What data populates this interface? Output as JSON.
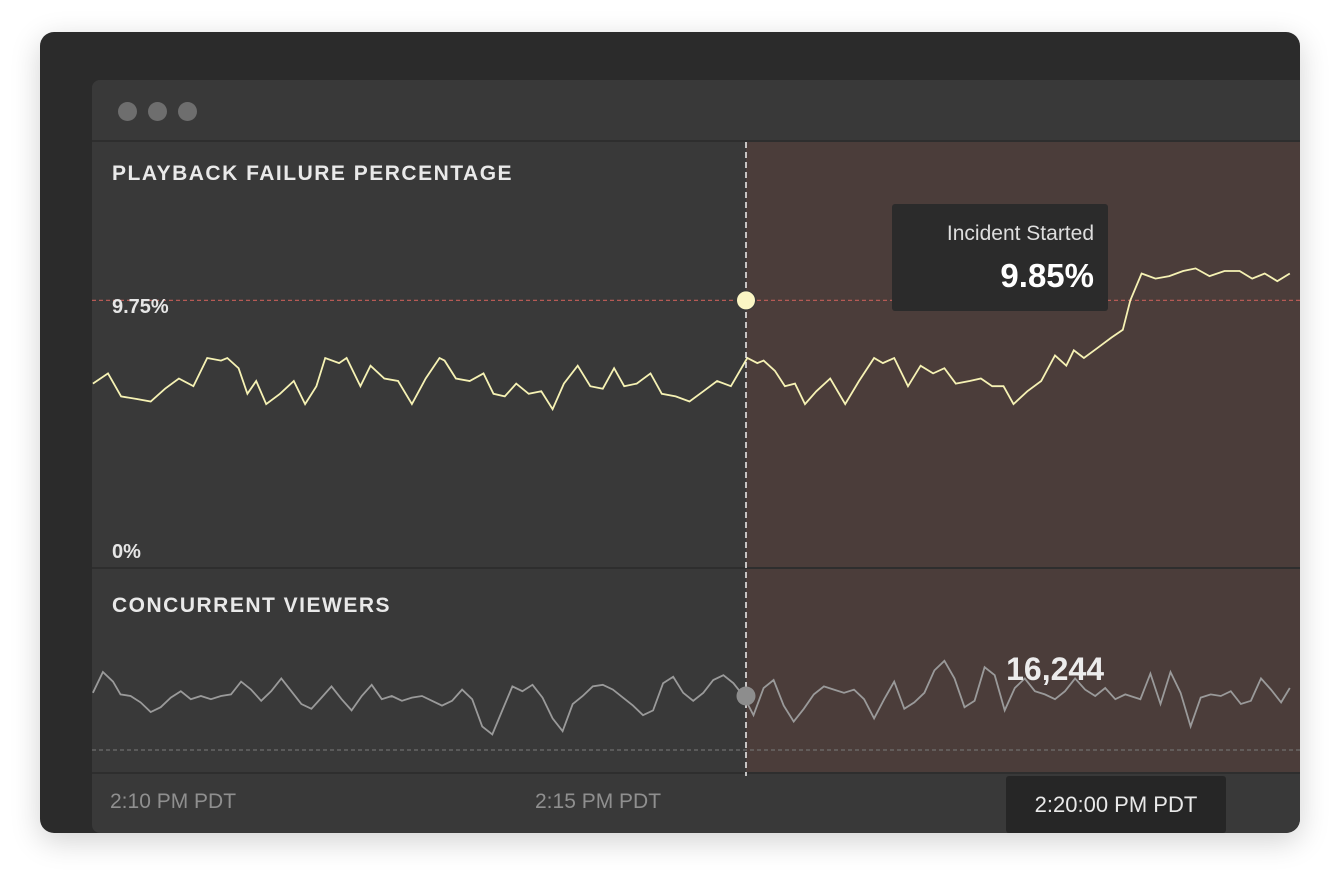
{
  "window": {
    "dots": [
      "close-dot",
      "minimize-dot",
      "maximize-dot"
    ]
  },
  "failure_panel": {
    "title": "PLAYBACK FAILURE PERCENTAGE",
    "threshold_label": "9.75%",
    "zero_label": "0%",
    "line_color": "#f6f2b4",
    "threshold_color": "#b65a55"
  },
  "viewers_panel": {
    "title": "CONCURRENT VIEWERS",
    "current_value": "16,244",
    "line_color": "#9a9a9a"
  },
  "tooltip": {
    "label": "Incident Started",
    "value": "9.85%"
  },
  "x_axis": {
    "labels": [
      "2:10 PM PDT",
      "2:15 PM PDT"
    ],
    "current_time": "2:20:00 PM PDT"
  },
  "incident_color": "#4b3d3a",
  "chart_data": [
    {
      "type": "line",
      "title": "PLAYBACK FAILURE PERCENTAGE",
      "x_unit": "minutes after 2:10 PM PDT",
      "threshold": 9.75,
      "incident_start_x": 10.0,
      "ylim": [
        0,
        12
      ],
      "series": [
        {
          "values": [
            [
              -0.4,
              6.5
            ],
            [
              -0.16,
              6.9
            ],
            [
              0.05,
              6.0
            ],
            [
              0.3,
              5.9
            ],
            [
              0.52,
              5.8
            ],
            [
              0.75,
              6.3
            ],
            [
              0.97,
              6.7
            ],
            [
              1.2,
              6.4
            ],
            [
              1.42,
              7.5
            ],
            [
              1.64,
              7.4
            ],
            [
              1.74,
              7.5
            ],
            [
              1.92,
              7.1
            ],
            [
              2.06,
              6.1
            ],
            [
              2.2,
              6.6
            ],
            [
              2.36,
              5.7
            ],
            [
              2.58,
              6.1
            ],
            [
              2.8,
              6.6
            ],
            [
              2.98,
              5.7
            ],
            [
              3.16,
              6.4
            ],
            [
              3.3,
              7.5
            ],
            [
              3.52,
              7.3
            ],
            [
              3.64,
              7.5
            ],
            [
              3.86,
              6.4
            ],
            [
              4.02,
              7.2
            ],
            [
              4.24,
              6.7
            ],
            [
              4.46,
              6.6
            ],
            [
              4.68,
              5.7
            ],
            [
              4.9,
              6.7
            ],
            [
              5.12,
              7.5
            ],
            [
              5.2,
              7.4
            ],
            [
              5.38,
              6.7
            ],
            [
              5.6,
              6.6
            ],
            [
              5.82,
              6.9
            ],
            [
              5.98,
              6.1
            ],
            [
              6.16,
              6.0
            ],
            [
              6.34,
              6.5
            ],
            [
              6.54,
              6.1
            ],
            [
              6.74,
              6.2
            ],
            [
              6.92,
              5.5
            ],
            [
              7.1,
              6.5
            ],
            [
              7.32,
              7.2
            ],
            [
              7.52,
              6.4
            ],
            [
              7.72,
              6.3
            ],
            [
              7.9,
              7.1
            ],
            [
              8.06,
              6.4
            ],
            [
              8.26,
              6.5
            ],
            [
              8.48,
              6.9
            ],
            [
              8.66,
              6.1
            ],
            [
              8.88,
              6.0
            ],
            [
              9.1,
              5.8
            ],
            [
              9.32,
              6.2
            ],
            [
              9.54,
              6.6
            ],
            [
              9.76,
              6.4
            ],
            [
              10.02,
              7.5
            ],
            [
              10.18,
              7.3
            ],
            [
              10.28,
              7.4
            ],
            [
              10.46,
              7.0
            ],
            [
              10.62,
              6.4
            ],
            [
              10.78,
              6.5
            ],
            [
              10.94,
              5.7
            ],
            [
              11.12,
              6.2
            ],
            [
              11.34,
              6.7
            ],
            [
              11.58,
              5.7
            ],
            [
              11.8,
              6.6
            ],
            [
              12.04,
              7.5
            ],
            [
              12.18,
              7.3
            ],
            [
              12.36,
              7.5
            ],
            [
              12.58,
              6.4
            ],
            [
              12.78,
              7.2
            ],
            [
              12.98,
              6.9
            ],
            [
              13.16,
              7.1
            ],
            [
              13.34,
              6.5
            ],
            [
              13.56,
              6.6
            ],
            [
              13.74,
              6.7
            ],
            [
              13.92,
              6.4
            ],
            [
              14.1,
              6.4
            ],
            [
              14.26,
              5.7
            ],
            [
              14.48,
              6.2
            ],
            [
              14.7,
              6.6
            ],
            [
              14.92,
              7.6
            ],
            [
              15.1,
              7.2
            ],
            [
              15.22,
              7.8
            ],
            [
              15.38,
              7.5
            ],
            [
              15.6,
              7.9
            ],
            [
              15.82,
              8.3
            ],
            [
              16.0,
              8.6
            ],
            [
              16.12,
              9.75
            ],
            [
              16.3,
              10.8
            ],
            [
              16.52,
              10.6
            ],
            [
              16.74,
              10.7
            ],
            [
              16.96,
              10.9
            ],
            [
              17.16,
              11.0
            ],
            [
              17.38,
              10.7
            ],
            [
              17.62,
              10.9
            ],
            [
              17.86,
              10.9
            ],
            [
              18.06,
              10.6
            ],
            [
              18.26,
              10.8
            ],
            [
              18.46,
              10.5
            ],
            [
              18.66,
              10.8
            ]
          ]
        }
      ]
    },
    {
      "type": "line",
      "title": "CONCURRENT VIEWERS",
      "x_unit": "minutes after 2:10 PM PDT",
      "ylim": [
        0,
        30000
      ],
      "series": [
        {
          "values": [
            [
              -0.4,
              16.6
            ],
            [
              -0.24,
              17.9
            ],
            [
              -0.08,
              17.3
            ],
            [
              0.04,
              16.5
            ],
            [
              0.2,
              16.4
            ],
            [
              0.36,
              16.0
            ],
            [
              0.52,
              15.4
            ],
            [
              0.68,
              15.7
            ],
            [
              0.84,
              16.3
            ],
            [
              1.0,
              16.7
            ],
            [
              1.16,
              16.2
            ],
            [
              1.32,
              16.4
            ],
            [
              1.48,
              16.2
            ],
            [
              1.64,
              16.4
            ],
            [
              1.8,
              16.5
            ],
            [
              1.96,
              17.3
            ],
            [
              2.12,
              16.8
            ],
            [
              2.28,
              16.1
            ],
            [
              2.44,
              16.7
            ],
            [
              2.6,
              17.5
            ],
            [
              2.76,
              16.7
            ],
            [
              2.92,
              15.9
            ],
            [
              3.08,
              15.6
            ],
            [
              3.24,
              16.3
            ],
            [
              3.4,
              17.0
            ],
            [
              3.56,
              16.2
            ],
            [
              3.72,
              15.5
            ],
            [
              3.88,
              16.4
            ],
            [
              4.04,
              17.1
            ],
            [
              4.2,
              16.2
            ],
            [
              4.36,
              16.4
            ],
            [
              4.52,
              16.1
            ],
            [
              4.68,
              16.3
            ],
            [
              4.84,
              16.4
            ],
            [
              5.0,
              16.1
            ],
            [
              5.16,
              15.8
            ],
            [
              5.32,
              16.1
            ],
            [
              5.48,
              16.8
            ],
            [
              5.64,
              16.2
            ],
            [
              5.8,
              14.5
            ],
            [
              5.96,
              14.0
            ],
            [
              6.12,
              15.5
            ],
            [
              6.28,
              17.0
            ],
            [
              6.44,
              16.7
            ],
            [
              6.6,
              17.1
            ],
            [
              6.76,
              16.3
            ],
            [
              6.92,
              15.0
            ],
            [
              7.08,
              14.2
            ],
            [
              7.24,
              15.9
            ],
            [
              7.4,
              16.4
            ],
            [
              7.56,
              17.0
            ],
            [
              7.72,
              17.1
            ],
            [
              7.88,
              16.8
            ],
            [
              8.04,
              16.3
            ],
            [
              8.2,
              15.8
            ],
            [
              8.36,
              15.2
            ],
            [
              8.52,
              15.5
            ],
            [
              8.68,
              17.2
            ],
            [
              8.84,
              17.6
            ],
            [
              9.0,
              16.6
            ],
            [
              9.16,
              16.1
            ],
            [
              9.32,
              16.6
            ],
            [
              9.48,
              17.4
            ],
            [
              9.64,
              17.7
            ],
            [
              9.8,
              17.2
            ],
            [
              9.96,
              16.4
            ],
            [
              10.12,
              15.2
            ],
            [
              10.28,
              16.9
            ],
            [
              10.44,
              17.4
            ],
            [
              10.6,
              15.8
            ],
            [
              10.76,
              14.8
            ],
            [
              10.92,
              15.6
            ],
            [
              11.08,
              16.5
            ],
            [
              11.24,
              17.0
            ],
            [
              11.4,
              16.8
            ],
            [
              11.56,
              16.6
            ],
            [
              11.72,
              16.8
            ],
            [
              11.88,
              16.2
            ],
            [
              12.04,
              15.0
            ],
            [
              12.2,
              16.2
            ],
            [
              12.36,
              17.3
            ],
            [
              12.52,
              15.6
            ],
            [
              12.68,
              16.0
            ],
            [
              12.84,
              16.6
            ],
            [
              13.0,
              18.0
            ],
            [
              13.16,
              18.6
            ],
            [
              13.32,
              17.5
            ],
            [
              13.48,
              15.7
            ],
            [
              13.64,
              16.1
            ],
            [
              13.8,
              18.2
            ],
            [
              13.96,
              17.7
            ],
            [
              14.12,
              15.5
            ],
            [
              14.28,
              16.9
            ],
            [
              14.44,
              17.5
            ],
            [
              14.6,
              16.7
            ],
            [
              14.76,
              16.5
            ],
            [
              14.92,
              16.2
            ],
            [
              15.08,
              16.7
            ],
            [
              15.24,
              17.5
            ],
            [
              15.4,
              16.8
            ],
            [
              15.56,
              16.4
            ],
            [
              15.72,
              16.9
            ],
            [
              15.88,
              16.2
            ],
            [
              16.04,
              16.5
            ],
            [
              16.12,
              16.4
            ],
            [
              16.28,
              16.2
            ],
            [
              16.44,
              17.8
            ],
            [
              16.6,
              15.9
            ],
            [
              16.76,
              17.9
            ],
            [
              16.92,
              16.6
            ],
            [
              17.08,
              14.5
            ],
            [
              17.24,
              16.3
            ],
            [
              17.4,
              16.5
            ],
            [
              17.56,
              16.4
            ],
            [
              17.72,
              16.7
            ],
            [
              17.88,
              15.9
            ],
            [
              18.04,
              16.1
            ],
            [
              18.2,
              17.5
            ],
            [
              18.36,
              16.8
            ],
            [
              18.52,
              16.0
            ],
            [
              18.66,
              16.9
            ]
          ]
        }
      ]
    }
  ]
}
